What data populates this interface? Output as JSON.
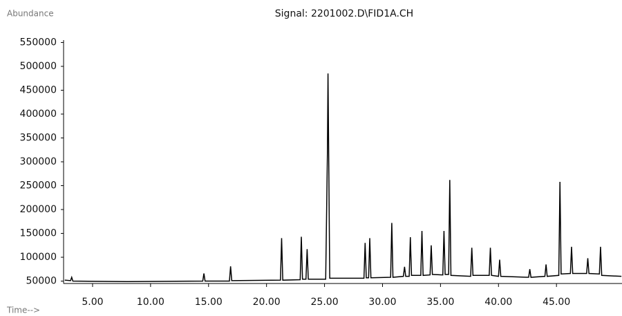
{
  "chart_data": {
    "type": "line",
    "title": "Signal: 2201002.D\\FID1A.CH",
    "y_label": "Abundance",
    "x_label": "Time-->",
    "xlim": [
      2.5,
      50.65
    ],
    "ylim": [
      45000,
      555000
    ],
    "xticks": [
      {
        "value": 5,
        "label": "5.00"
      },
      {
        "value": 10,
        "label": "10.00"
      },
      {
        "value": 15,
        "label": "15.00"
      },
      {
        "value": 20,
        "label": "20.00"
      },
      {
        "value": 25,
        "label": "25.00"
      },
      {
        "value": 30,
        "label": "30.00"
      },
      {
        "value": 35,
        "label": "35.00"
      },
      {
        "value": 40,
        "label": "40.00"
      },
      {
        "value": 45,
        "label": "45.00"
      }
    ],
    "yticks": [
      50000,
      100000,
      150000,
      200000,
      250000,
      300000,
      350000,
      400000,
      450000,
      500000,
      550000
    ],
    "color": "#000000",
    "x": [
      2.6,
      3.1,
      3.2,
      3.3,
      8.0,
      14.5,
      14.6,
      14.7,
      16.8,
      16.9,
      17.0,
      21.2,
      21.3,
      21.4,
      22.9,
      23.0,
      23.1,
      23.4,
      23.5,
      23.6,
      25.1,
      25.25,
      25.3,
      25.45,
      28.4,
      28.5,
      28.6,
      28.8,
      28.9,
      29.0,
      30.7,
      30.8,
      30.9,
      31.8,
      31.9,
      32.0,
      32.3,
      32.4,
      32.5,
      33.3,
      33.4,
      33.5,
      34.1,
      34.2,
      34.3,
      35.2,
      35.3,
      35.4,
      35.7,
      35.8,
      35.9,
      37.6,
      37.7,
      37.8,
      39.2,
      39.3,
      39.4,
      40.0,
      40.1,
      40.2,
      42.6,
      42.7,
      42.8,
      44.0,
      44.1,
      44.2,
      45.2,
      45.3,
      45.4,
      46.2,
      46.3,
      46.4,
      47.6,
      47.7,
      47.8,
      48.7,
      48.8,
      48.9,
      50.6
    ],
    "values": [
      52000,
      51000,
      58000,
      50000,
      49000,
      50000,
      66000,
      50000,
      50000,
      81000,
      51000,
      52000,
      140000,
      52000,
      53000,
      143000,
      54000,
      54000,
      117000,
      54000,
      54000,
      320000,
      485000,
      56000,
      56000,
      130000,
      57000,
      57000,
      140000,
      57000,
      58000,
      172000,
      58000,
      60000,
      80000,
      60000,
      60000,
      142000,
      62000,
      62000,
      155000,
      62000,
      63000,
      125000,
      64000,
      63000,
      155000,
      64000,
      64000,
      262000,
      62000,
      60000,
      120000,
      62000,
      62000,
      120000,
      62000,
      60000,
      95000,
      60000,
      58000,
      75000,
      58000,
      60000,
      85000,
      60000,
      62000,
      258000,
      65000,
      66000,
      122000,
      66000,
      66000,
      98000,
      66000,
      65000,
      122000,
      62000,
      60000
    ]
  }
}
